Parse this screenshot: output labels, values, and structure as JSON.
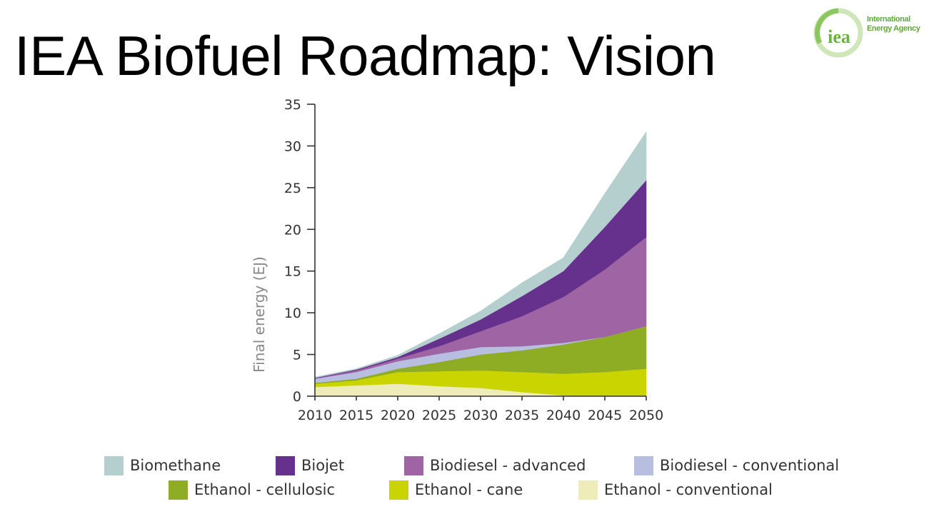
{
  "slide": {
    "title": "IEA Biofuel Roadmap: Vision",
    "logo": {
      "mark_text": "iea",
      "line1": "International",
      "line2": "Energy Agency",
      "color": "#6db33f"
    }
  },
  "chart_data": {
    "type": "area",
    "stacked": true,
    "title": "",
    "xlabel": "",
    "ylabel": "Final energy (EJ)",
    "x": [
      2010,
      2015,
      2020,
      2025,
      2030,
      2035,
      2040,
      2045,
      2050
    ],
    "xticks": [
      "2010",
      "2015",
      "2020",
      "2025",
      "2030",
      "2035",
      "2040",
      "2045",
      "2050"
    ],
    "ylim": [
      0,
      35
    ],
    "yticks": [
      "0",
      "5",
      "10",
      "15",
      "20",
      "25",
      "30",
      "35"
    ],
    "ytick_values": [
      0,
      5,
      10,
      15,
      20,
      25,
      30,
      35
    ],
    "grid": false,
    "legend_position": "bottom",
    "series": [
      {
        "name": "Ethanol - conventional",
        "color": "#eeedb9",
        "values": [
          1.1,
          1.3,
          1.5,
          1.2,
          1.0,
          0.5,
          0.1,
          0.0,
          0.0
        ]
      },
      {
        "name": "Ethanol - cane",
        "color": "#c9d400",
        "values": [
          0.4,
          0.6,
          1.4,
          1.8,
          2.1,
          2.4,
          2.6,
          2.9,
          3.3
        ]
      },
      {
        "name": "Ethanol - cellulosic",
        "color": "#8fac25",
        "values": [
          0.1,
          0.2,
          0.4,
          1.1,
          1.9,
          2.6,
          3.5,
          4.2,
          5.1
        ]
      },
      {
        "name": "Biodiesel - conventional",
        "color": "#b7bedf",
        "values": [
          0.5,
          0.8,
          0.9,
          1.0,
          0.9,
          0.5,
          0.2,
          0.0,
          0.0
        ]
      },
      {
        "name": "Biodiesel - advanced",
        "color": "#9e64a3",
        "values": [
          0.05,
          0.2,
          0.3,
          0.9,
          1.9,
          3.6,
          5.5,
          8.1,
          10.7
        ]
      },
      {
        "name": "Biojet",
        "color": "#66318c",
        "values": [
          0.05,
          0.1,
          0.2,
          0.9,
          1.4,
          2.4,
          3.1,
          5.1,
          6.8
        ]
      },
      {
        "name": "Biomethane",
        "color": "#b5cfcf",
        "values": [
          0.1,
          0.1,
          0.2,
          0.6,
          1.0,
          1.6,
          1.6,
          4.0,
          5.8
        ]
      }
    ],
    "legend": [
      {
        "label": "Biomethane",
        "color": "#b5cfcf"
      },
      {
        "label": "Biojet",
        "color": "#66318c"
      },
      {
        "label": "Biodiesel - advanced",
        "color": "#9e64a3"
      },
      {
        "label": "Biodiesel - conventional",
        "color": "#b7bedf"
      },
      {
        "label": "Ethanol - cellulosic",
        "color": "#8fac25"
      },
      {
        "label": "Ethanol - cane",
        "color": "#c9d400"
      },
      {
        "label": "Ethanol - conventional",
        "color": "#eeedb9"
      }
    ]
  }
}
